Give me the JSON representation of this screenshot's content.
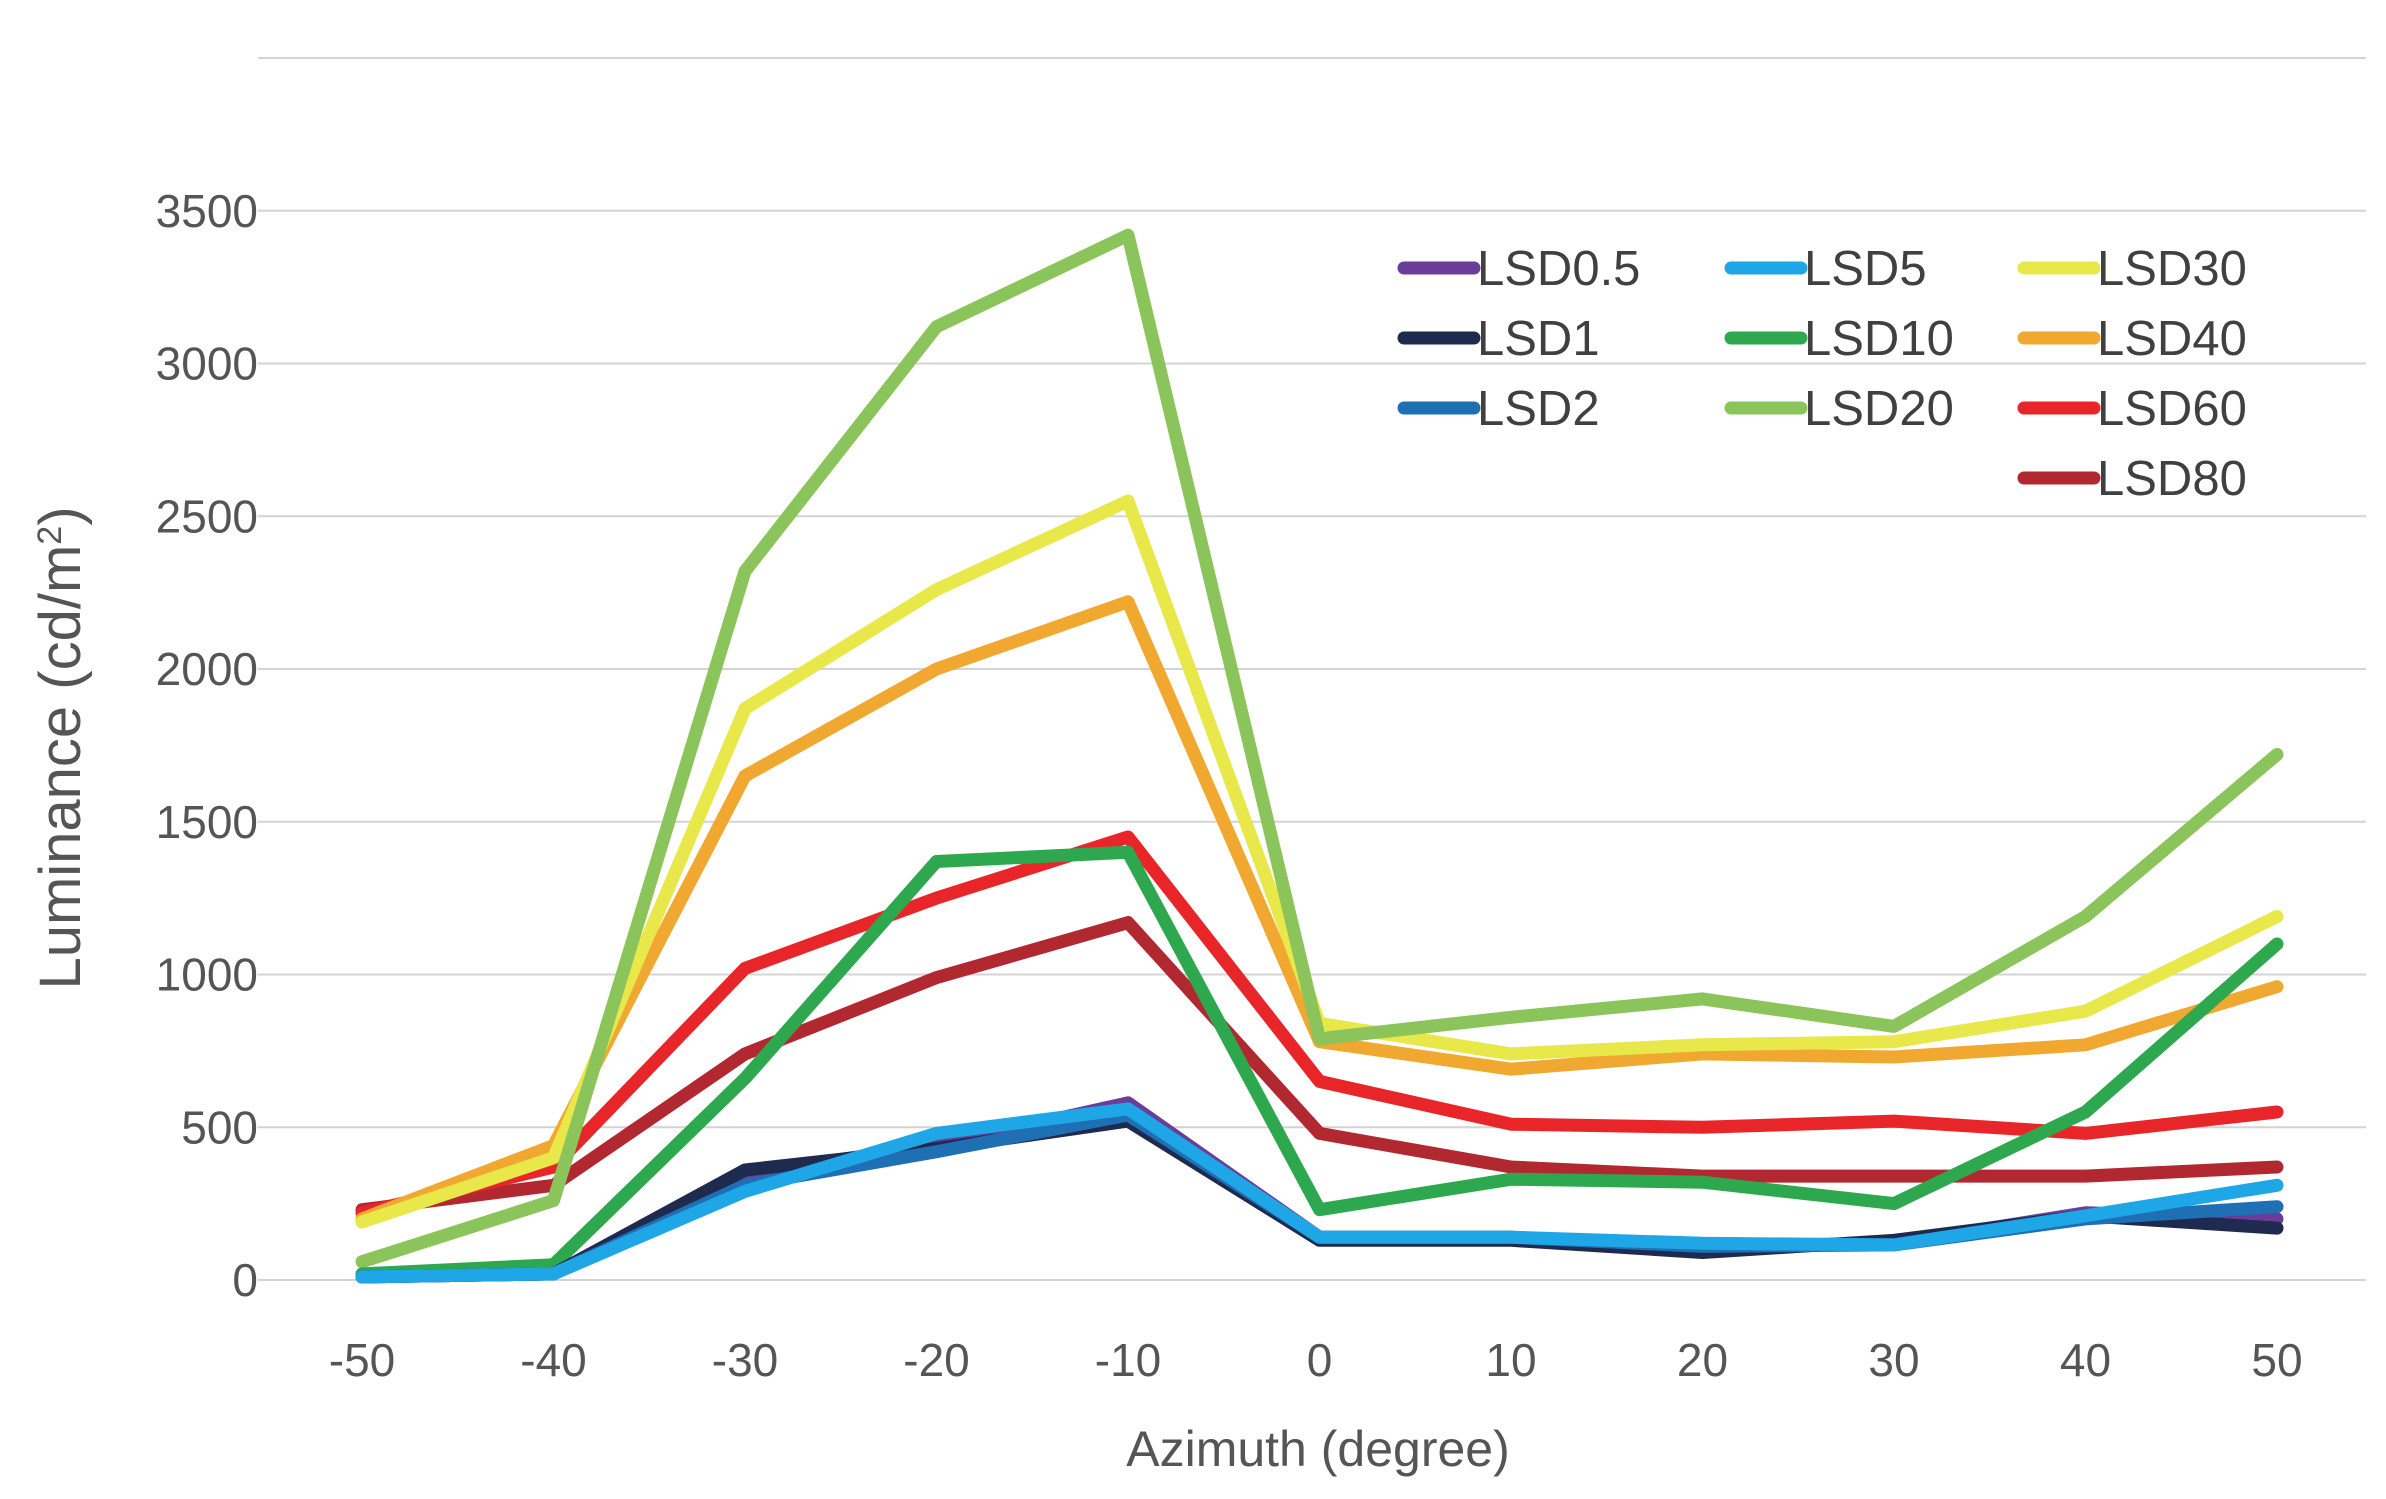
{
  "chart_data": {
    "type": "line",
    "title": "",
    "xlabel": "Azimuth (degree)",
    "ylabel_main": "Luminance (cd/m",
    "ylabel_sup": "2",
    "ylabel_close": ")",
    "x": [
      -50,
      -40,
      -30,
      -20,
      -10,
      0,
      10,
      20,
      30,
      40,
      50
    ],
    "x_tick_labels": [
      "-50",
      "-40",
      "-30",
      "-20",
      "-10",
      "0",
      "10",
      "20",
      "30",
      "40",
      "50"
    ],
    "ylim": [
      0,
      4000
    ],
    "y_ticks": [
      0,
      500,
      1000,
      1500,
      2000,
      2500,
      3000,
      3500
    ],
    "y_tick_labels": [
      "0",
      "500",
      "1000",
      "1500",
      "2000",
      "2500",
      "3000",
      "3500"
    ],
    "grid": true,
    "legend_position": "top-right",
    "series": [
      {
        "name": "LSD0.5",
        "color": "#6a3d9a",
        "values": [
          10,
          20,
          350,
          440,
          580,
          140,
          140,
          110,
          120,
          220,
          200
        ]
      },
      {
        "name": "LSD1",
        "color": "#1f2a4f",
        "values": [
          10,
          20,
          360,
          430,
          520,
          130,
          130,
          90,
          130,
          210,
          170
        ]
      },
      {
        "name": "LSD2",
        "color": "#1f6fb5",
        "values": [
          10,
          20,
          310,
          420,
          540,
          140,
          140,
          110,
          115,
          200,
          240
        ]
      },
      {
        "name": "LSD5",
        "color": "#1ea6e6",
        "values": [
          10,
          20,
          290,
          480,
          560,
          140,
          140,
          120,
          115,
          210,
          310
        ]
      },
      {
        "name": "LSD10",
        "color": "#2ea84f",
        "values": [
          20,
          50,
          660,
          1370,
          1400,
          230,
          330,
          320,
          250,
          550,
          1100
        ]
      },
      {
        "name": "LSD20",
        "color": "#8bc45a",
        "values": [
          60,
          260,
          2320,
          3120,
          3420,
          790,
          860,
          920,
          830,
          1190,
          1720
        ]
      },
      {
        "name": "LSD30",
        "color": "#e8e84a",
        "values": [
          190,
          400,
          1870,
          2260,
          2550,
          840,
          740,
          770,
          780,
          880,
          1190
        ]
      },
      {
        "name": "LSD40",
        "color": "#f0a830",
        "values": [
          200,
          440,
          1650,
          2000,
          2220,
          780,
          690,
          740,
          730,
          770,
          960
        ]
      },
      {
        "name": "LSD60",
        "color": "#e8262a",
        "values": [
          220,
          370,
          1020,
          1250,
          1450,
          650,
          510,
          500,
          520,
          480,
          550
        ]
      },
      {
        "name": "LSD80",
        "color": "#b22830",
        "values": [
          230,
          310,
          740,
          990,
          1170,
          480,
          370,
          340,
          340,
          340,
          370
        ]
      }
    ]
  }
}
